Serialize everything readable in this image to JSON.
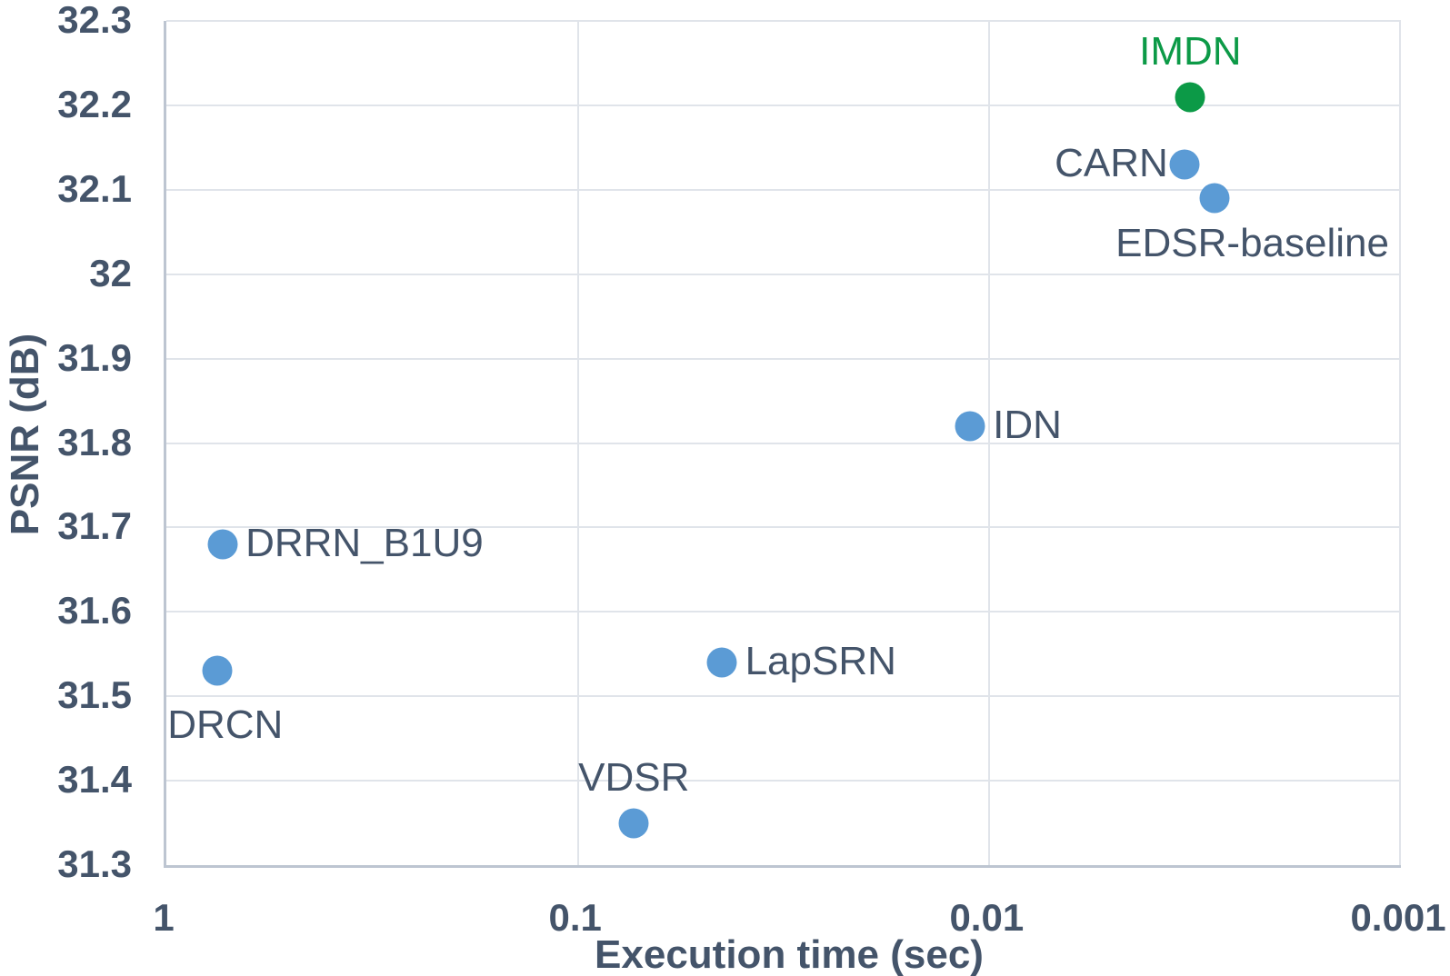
{
  "colors": {
    "text": "#44546A",
    "grid": "#e0e4ea",
    "axis": "#bdc5d1",
    "background": "#ffffff",
    "baseline_marker": "#5B9BD5",
    "imdn_marker": "#0c9a47"
  },
  "chart_data": {
    "type": "scatter",
    "title": "",
    "xlabel": "Execution time (sec)",
    "ylabel": "PSNR (dB)",
    "x_scale": "log10-reversed",
    "xlim": [
      1,
      0.001
    ],
    "ylim": [
      31.3,
      32.3
    ],
    "x_ticks": [
      1,
      0.1,
      0.01,
      0.001
    ],
    "x_tick_labels": [
      "1",
      "0.1",
      "0.01",
      "0.001"
    ],
    "y_ticks": [
      32.3,
      32.2,
      32.1,
      32.0,
      31.9,
      31.8,
      31.7,
      31.6,
      31.5,
      31.4,
      31.3
    ],
    "y_tick_labels": [
      "32.3",
      "32.2",
      "32.1",
      "32",
      "31.9",
      "31.8",
      "31.7",
      "31.6",
      "31.5",
      "31.4",
      "31.3"
    ],
    "grid": true,
    "legend": "none",
    "points": [
      {
        "name": "IMDN",
        "time_sec": 0.0032,
        "psnr_db": 32.21,
        "series": "imdn",
        "label_pos": "above"
      },
      {
        "name": "CARN",
        "time_sec": 0.0033,
        "psnr_db": 32.13,
        "series": "baseline",
        "label_pos": "left"
      },
      {
        "name": "EDSR-baseline",
        "time_sec": 0.0028,
        "psnr_db": 32.09,
        "series": "baseline",
        "label_pos": "below-right"
      },
      {
        "name": "IDN",
        "time_sec": 0.011,
        "psnr_db": 31.82,
        "series": "baseline",
        "label_pos": "right"
      },
      {
        "name": "DRRN_B1U9",
        "time_sec": 0.72,
        "psnr_db": 31.68,
        "series": "baseline",
        "label_pos": "right"
      },
      {
        "name": "DRCN",
        "time_sec": 0.74,
        "psnr_db": 31.53,
        "series": "baseline",
        "label_pos": "below-left"
      },
      {
        "name": "LapSRN",
        "time_sec": 0.044,
        "psnr_db": 31.54,
        "series": "baseline",
        "label_pos": "right"
      },
      {
        "name": "VDSR",
        "time_sec": 0.072,
        "psnr_db": 31.35,
        "series": "baseline",
        "label_pos": "above"
      }
    ],
    "series_colors": {
      "imdn": "#0c9a47",
      "baseline": "#5B9BD5"
    },
    "label_colors": {
      "imdn": "#0c9a47",
      "baseline": "#44546A"
    }
  }
}
